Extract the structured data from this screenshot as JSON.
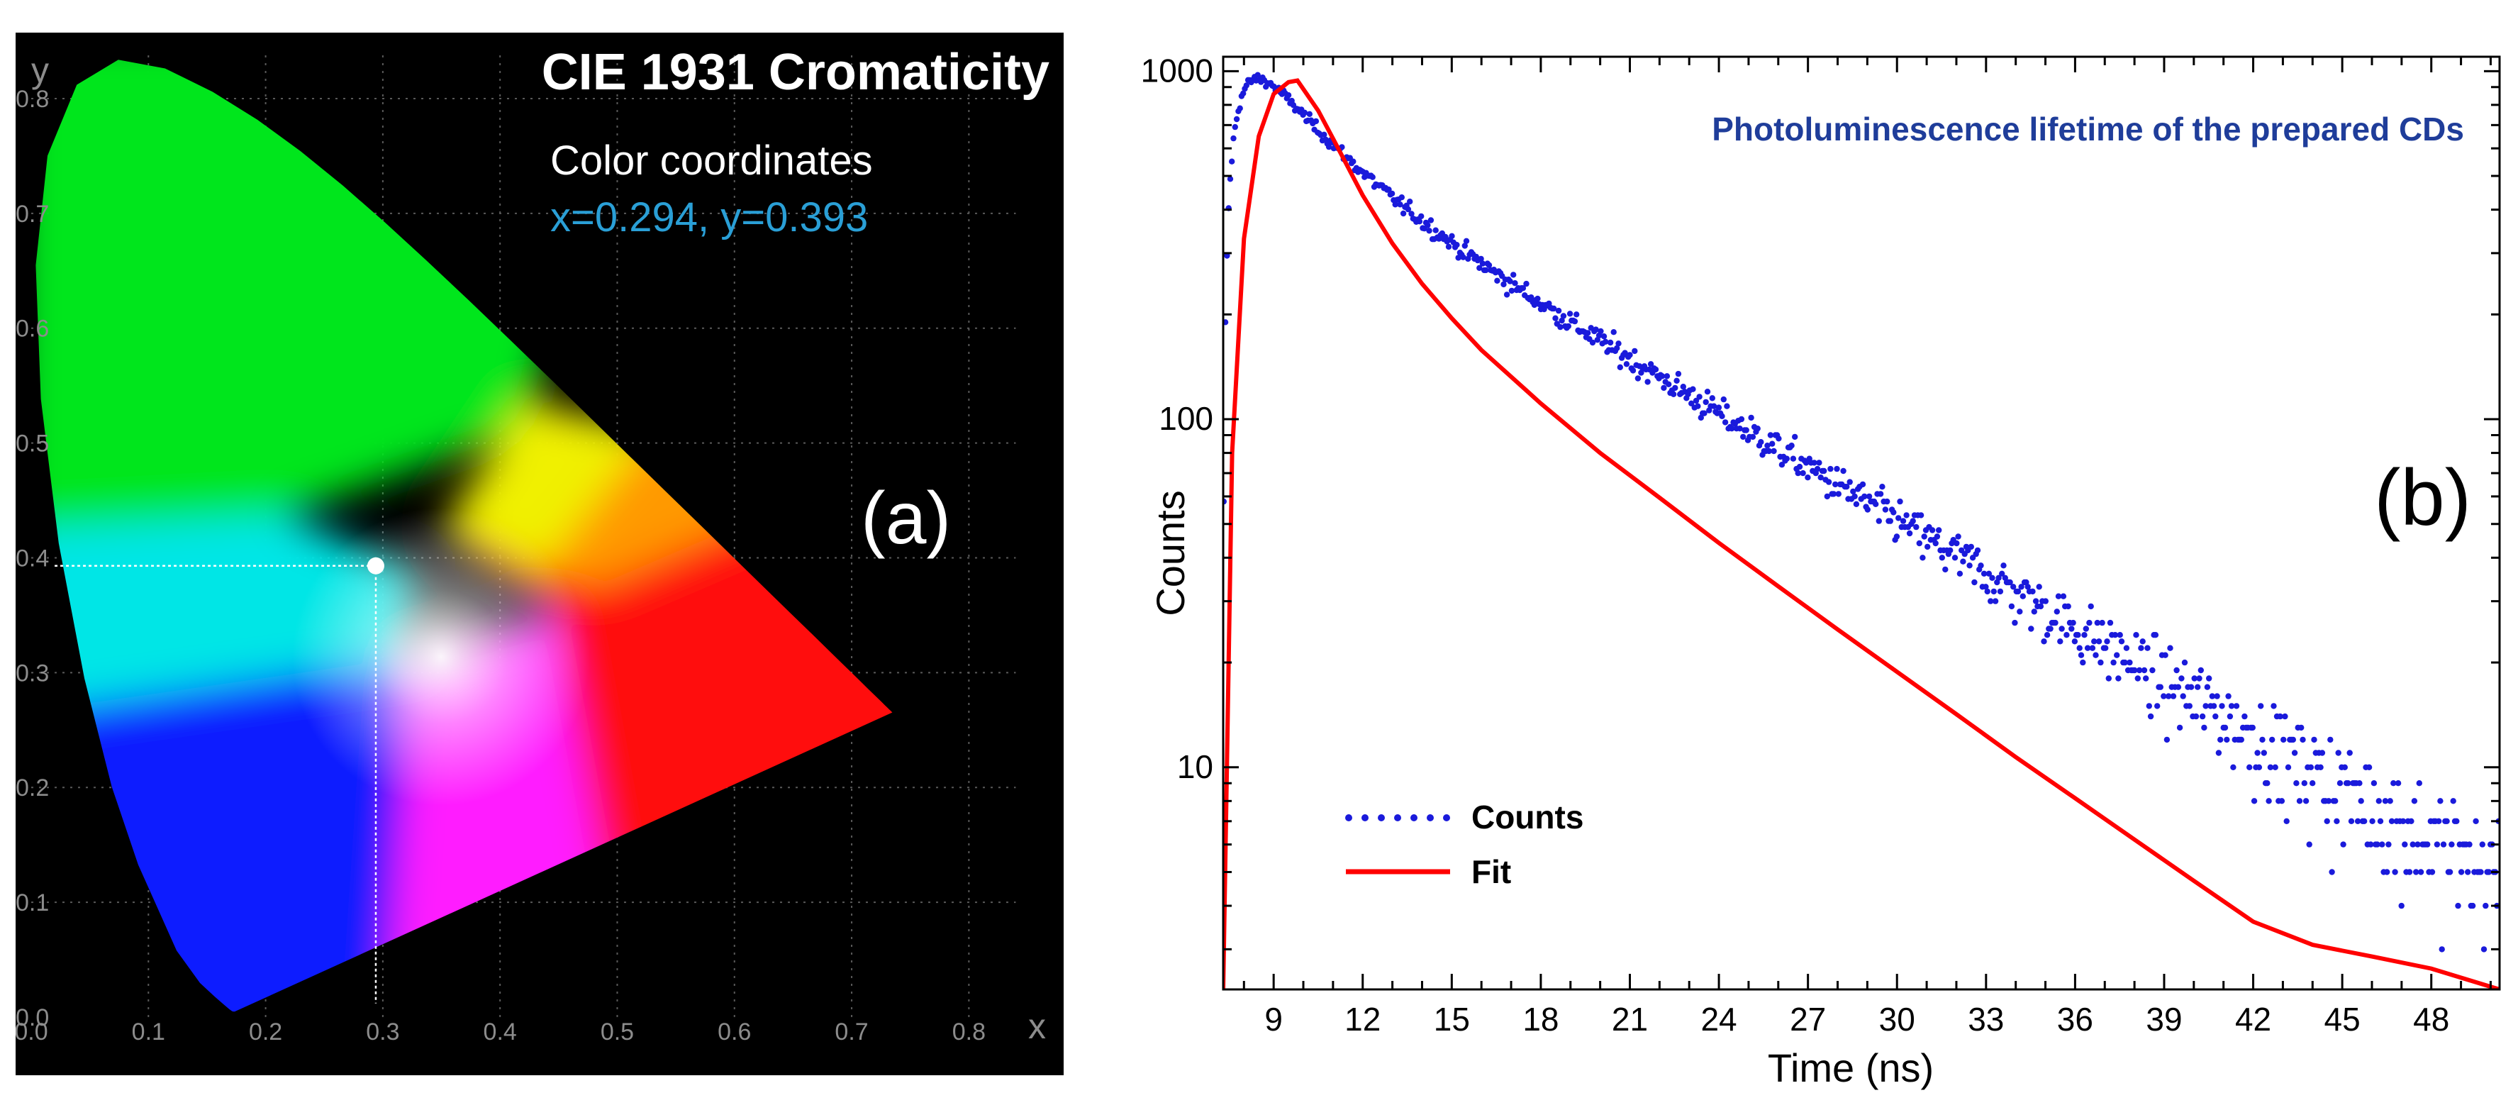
{
  "chart_data": [
    {
      "type": "scatter",
      "panel_label": "(a)",
      "title": "CIE 1931 Cromaticity",
      "annotation_heading": "Color coordinates",
      "annotation_values": "x=0.294, y=0.393",
      "xlabel": "x",
      "ylabel": "y",
      "xlim": [
        0.0,
        0.85
      ],
      "ylim": [
        0.0,
        0.85
      ],
      "xticks": [
        "0.0",
        "0.1",
        "0.2",
        "0.3",
        "0.4",
        "0.5",
        "0.6",
        "0.7",
        "0.8"
      ],
      "yticks": [
        "0.0",
        "0.1",
        "0.2",
        "0.3",
        "0.4",
        "0.5",
        "0.6",
        "0.7",
        "0.8"
      ],
      "grid": true,
      "point": {
        "x": 0.294,
        "y": 0.393
      },
      "spectral_locus": [
        [
          0.1741,
          0.005
        ],
        [
          0.1738,
          0.0049
        ],
        [
          0.1733,
          0.0048
        ],
        [
          0.1726,
          0.0048
        ],
        [
          0.1714,
          0.0051
        ],
        [
          0.1689,
          0.0069
        ],
        [
          0.1644,
          0.0109
        ],
        [
          0.1566,
          0.0177
        ],
        [
          0.144,
          0.0297
        ],
        [
          0.1241,
          0.0578
        ],
        [
          0.0913,
          0.1327
        ],
        [
          0.0687,
          0.2007
        ],
        [
          0.0454,
          0.295
        ],
        [
          0.0235,
          0.4127
        ],
        [
          0.0082,
          0.5384
        ],
        [
          0.0039,
          0.6548
        ],
        [
          0.0139,
          0.7502
        ],
        [
          0.0389,
          0.812
        ],
        [
          0.0743,
          0.8338
        ],
        [
          0.1142,
          0.8262
        ],
        [
          0.1547,
          0.8059
        ],
        [
          0.1929,
          0.7816
        ],
        [
          0.2296,
          0.7543
        ],
        [
          0.2658,
          0.7243
        ],
        [
          0.3016,
          0.6923
        ],
        [
          0.3373,
          0.6589
        ],
        [
          0.3731,
          0.6245
        ],
        [
          0.4087,
          0.5896
        ],
        [
          0.4441,
          0.5547
        ],
        [
          0.4788,
          0.5202
        ],
        [
          0.5125,
          0.4866
        ],
        [
          0.5448,
          0.4544
        ],
        [
          0.5752,
          0.4242
        ],
        [
          0.6029,
          0.3965
        ],
        [
          0.627,
          0.3725
        ],
        [
          0.6482,
          0.3514
        ],
        [
          0.6658,
          0.334
        ],
        [
          0.6801,
          0.3197
        ],
        [
          0.6915,
          0.3083
        ],
        [
          0.7006,
          0.2993
        ],
        [
          0.7079,
          0.292
        ],
        [
          0.714,
          0.2859
        ],
        [
          0.719,
          0.2809
        ],
        [
          0.723,
          0.277
        ],
        [
          0.726,
          0.274
        ],
        [
          0.7283,
          0.2717
        ],
        [
          0.73,
          0.27
        ],
        [
          0.7311,
          0.2689
        ],
        [
          0.732,
          0.268
        ],
        [
          0.7334,
          0.2666
        ],
        [
          0.7347,
          0.2653
        ]
      ],
      "colors": {
        "background": "#000000",
        "grid": "#5a5a5a",
        "tick_label": "#8c8c8c",
        "title": "#ffffff",
        "annotation_values": "#2a9fd6",
        "point": "#ffffff"
      }
    },
    {
      "type": "scatter",
      "panel_label": "(b)",
      "title": "Photoluminescence lifetime of the prepared CDs",
      "xlabel": "Time (ns)",
      "ylabel": "Counts",
      "yscale": "log",
      "xlim": [
        7.3,
        50.3
      ],
      "ylim": [
        2.3,
        1100
      ],
      "xticks": [
        9,
        12,
        15,
        18,
        21,
        24,
        27,
        30,
        33,
        36,
        39,
        42,
        45,
        48
      ],
      "xtick_labels": [
        "9",
        "12",
        "15",
        "18",
        "21",
        "24",
        "27",
        "30",
        "33",
        "36",
        "39",
        "42",
        "45",
        "48"
      ],
      "yticks": [
        10,
        100,
        1000
      ],
      "ytick_labels": [
        "10",
        "100",
        "1000"
      ],
      "legend_position": "bottom-left",
      "series": [
        {
          "name": "Counts",
          "style": "dotted points",
          "color": "#1a1adb",
          "model": {
            "t0": 7.3,
            "peak_time": 9.8,
            "peak_counts": 950,
            "rise_tau": 0.55,
            "tau1": 2.2,
            "tau2": 8.5,
            "fast_fraction": 0.5,
            "sampling_ns": 0.0545,
            "poisson_noise": true
          }
        },
        {
          "name": "Fit",
          "style": "solid line",
          "color": "#ff0000",
          "x": [
            7.3,
            7.6,
            8.0,
            8.5,
            9.0,
            9.5,
            9.8,
            10.5,
            11,
            12,
            13,
            14,
            15,
            16,
            18,
            20,
            22,
            24,
            26,
            28,
            30,
            32,
            34,
            36,
            38,
            40,
            42,
            44,
            46,
            48,
            50.3
          ],
          "y": [
            2.3,
            80,
            330,
            650,
            860,
            930,
            940,
            770,
            640,
            440,
            320,
            245,
            195,
            158,
            111,
            80,
            59.5,
            44.1,
            33.1,
            24.9,
            18.8,
            14.2,
            10.7,
            8.15,
            6.2,
            4.72,
            3.6,
            3.09,
            2.86,
            2.64,
            2.3
          ]
        }
      ],
      "colors": {
        "title": "#1f3d9a",
        "axis": "#000000"
      }
    }
  ]
}
